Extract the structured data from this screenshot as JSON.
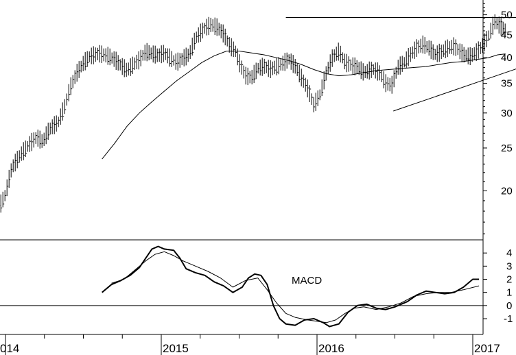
{
  "chart_data": [
    {
      "type": "ohlc",
      "panel": "price",
      "scale": "log",
      "ylim": [
        15.5,
        54
      ],
      "y_ticks": [
        20,
        25,
        30,
        35,
        40,
        45,
        50
      ],
      "x_labels": [
        {
          "x": 2014.0,
          "label": "014"
        },
        {
          "x": 2015.0,
          "label": "2015"
        },
        {
          "x": 2016.0,
          "label": "2016"
        },
        {
          "x": 2017.0,
          "label": "2017"
        }
      ],
      "price_path": [
        [
          2013.6,
          18.6
        ],
        [
          2013.66,
          18.2
        ],
        [
          2013.7,
          17.8
        ],
        [
          2013.74,
          19.2
        ],
        [
          2013.8,
          19.8
        ],
        [
          2013.86,
          19.7
        ],
        [
          2013.92,
          19.3
        ],
        [
          2013.96,
          18.4
        ],
        [
          2014.0,
          19.6
        ],
        [
          2014.04,
          22.5
        ],
        [
          2014.1,
          24.2
        ],
        [
          2014.16,
          25.6
        ],
        [
          2014.2,
          26.4
        ],
        [
          2014.24,
          25.8
        ],
        [
          2014.28,
          27.5
        ],
        [
          2014.34,
          28.6
        ],
        [
          2014.38,
          31.0
        ],
        [
          2014.42,
          34.5
        ],
        [
          2014.46,
          37.0
        ],
        [
          2014.5,
          38.8
        ],
        [
          2014.54,
          40.2
        ],
        [
          2014.6,
          40.8
        ],
        [
          2014.66,
          40.3
        ],
        [
          2014.7,
          39.6
        ],
        [
          2014.74,
          38.4
        ],
        [
          2014.78,
          37.4
        ],
        [
          2014.82,
          38.5
        ],
        [
          2014.86,
          39.5
        ],
        [
          2014.9,
          41.2
        ],
        [
          2014.94,
          40.8
        ],
        [
          2014.98,
          40.4
        ],
        [
          2015.02,
          40.9
        ],
        [
          2015.06,
          39.8
        ],
        [
          2015.1,
          39.0
        ],
        [
          2015.14,
          39.8
        ],
        [
          2015.18,
          40.6
        ],
        [
          2015.22,
          44.2
        ],
        [
          2015.28,
          46.6
        ],
        [
          2015.32,
          47.4
        ],
        [
          2015.36,
          46.8
        ],
        [
          2015.4,
          45.2
        ],
        [
          2015.44,
          42.5
        ],
        [
          2015.48,
          41.2
        ],
        [
          2015.5,
          39.0
        ],
        [
          2015.54,
          36.4
        ],
        [
          2015.58,
          36.0
        ],
        [
          2015.62,
          37.8
        ],
        [
          2015.66,
          38.2
        ],
        [
          2015.7,
          37.6
        ],
        [
          2015.76,
          38.4
        ],
        [
          2015.82,
          39.6
        ],
        [
          2015.86,
          38.2
        ],
        [
          2015.9,
          36.0
        ],
        [
          2015.94,
          34.0
        ],
        [
          2015.98,
          31.2
        ],
        [
          2016.02,
          33.0
        ],
        [
          2016.06,
          37.0
        ],
        [
          2016.1,
          40.0
        ],
        [
          2016.14,
          41.3
        ],
        [
          2016.18,
          39.0
        ],
        [
          2016.22,
          38.4
        ],
        [
          2016.26,
          38.0
        ],
        [
          2016.3,
          37.0
        ],
        [
          2016.36,
          37.6
        ],
        [
          2016.4,
          37.0
        ],
        [
          2016.44,
          35.0
        ],
        [
          2016.48,
          34.6
        ],
        [
          2016.52,
          38.0
        ],
        [
          2016.56,
          39.0
        ],
        [
          2016.6,
          40.6
        ],
        [
          2016.64,
          42.0
        ],
        [
          2016.68,
          42.8
        ],
        [
          2016.72,
          42.0
        ],
        [
          2016.76,
          40.6
        ],
        [
          2016.8,
          41.2
        ],
        [
          2016.84,
          42.0
        ],
        [
          2016.88,
          42.4
        ],
        [
          2016.94,
          40.6
        ],
        [
          2016.98,
          40.2
        ],
        [
          2017.02,
          41.0
        ],
        [
          2017.06,
          42.4
        ],
        [
          2017.1,
          44.6
        ],
        [
          2017.14,
          48.2
        ],
        [
          2017.18,
          47.0
        ],
        [
          2017.21,
          46.0
        ]
      ],
      "moving_average": [
        [
          2014.62,
          23.6
        ],
        [
          2014.7,
          25.6
        ],
        [
          2014.78,
          28.0
        ],
        [
          2014.86,
          30.0
        ],
        [
          2014.94,
          31.8
        ],
        [
          2015.02,
          33.6
        ],
        [
          2015.1,
          35.5
        ],
        [
          2015.18,
          37.2
        ],
        [
          2015.26,
          39.0
        ],
        [
          2015.34,
          40.4
        ],
        [
          2015.42,
          41.4
        ],
        [
          2015.5,
          41.4
        ],
        [
          2015.58,
          41.0
        ],
        [
          2015.66,
          40.6
        ],
        [
          2015.74,
          40.0
        ],
        [
          2015.82,
          39.4
        ],
        [
          2015.9,
          38.6
        ],
        [
          2015.98,
          37.6
        ],
        [
          2016.06,
          36.8
        ],
        [
          2016.14,
          36.4
        ],
        [
          2016.22,
          36.6
        ],
        [
          2016.3,
          37.0
        ],
        [
          2016.38,
          37.4
        ],
        [
          2016.46,
          37.6
        ],
        [
          2016.54,
          37.8
        ],
        [
          2016.62,
          38.0
        ],
        [
          2016.7,
          38.2
        ],
        [
          2016.78,
          38.6
        ],
        [
          2016.86,
          39.0
        ],
        [
          2016.94,
          39.2
        ],
        [
          2017.02,
          39.6
        ],
        [
          2017.1,
          40.0
        ],
        [
          2017.16,
          40.6
        ],
        [
          2017.21,
          40.8
        ]
      ],
      "resistance_line": {
        "x": [
          2015.8,
          2017.63
        ],
        "y": [
          49.3,
          49.3
        ]
      },
      "support_trendline": {
        "x": [
          2016.49,
          2017.63
        ],
        "y": [
          30.3,
          41.6
        ]
      }
    },
    {
      "type": "line",
      "panel": "indicator",
      "title": "MACD",
      "ylim": [
        -2.2,
        5.0
      ],
      "y_ticks": [
        -1,
        0,
        1,
        2,
        3,
        4
      ],
      "zero_line": 0,
      "series": [
        {
          "role": "macd",
          "points": [
            [
              2014.62,
              1.0
            ],
            [
              2014.68,
              1.6
            ],
            [
              2014.74,
              1.9
            ],
            [
              2014.8,
              2.3
            ],
            [
              2014.86,
              2.9
            ],
            [
              2014.9,
              3.6
            ],
            [
              2014.94,
              4.3
            ],
            [
              2014.98,
              4.5
            ],
            [
              2015.02,
              4.3
            ],
            [
              2015.08,
              4.2
            ],
            [
              2015.12,
              3.6
            ],
            [
              2015.16,
              2.8
            ],
            [
              2015.22,
              2.5
            ],
            [
              2015.28,
              2.3
            ],
            [
              2015.34,
              1.8
            ],
            [
              2015.4,
              1.5
            ],
            [
              2015.46,
              1.0
            ],
            [
              2015.52,
              1.4
            ],
            [
              2015.56,
              2.1
            ],
            [
              2015.6,
              2.4
            ],
            [
              2015.64,
              2.3
            ],
            [
              2015.68,
              1.6
            ],
            [
              2015.72,
              0.0
            ],
            [
              2015.76,
              -1.0
            ],
            [
              2015.8,
              -1.4
            ],
            [
              2015.86,
              -1.5
            ],
            [
              2015.92,
              -1.1
            ],
            [
              2015.98,
              -1.0
            ],
            [
              2016.04,
              -1.3
            ],
            [
              2016.08,
              -1.6
            ],
            [
              2016.14,
              -1.4
            ],
            [
              2016.2,
              -0.5
            ],
            [
              2016.26,
              0.0
            ],
            [
              2016.32,
              0.1
            ],
            [
              2016.38,
              -0.2
            ],
            [
              2016.44,
              -0.3
            ],
            [
              2016.5,
              -0.1
            ],
            [
              2016.58,
              0.3
            ],
            [
              2016.64,
              0.8
            ],
            [
              2016.7,
              1.1
            ],
            [
              2016.76,
              1.0
            ],
            [
              2016.82,
              0.9
            ],
            [
              2016.88,
              1.0
            ],
            [
              2016.94,
              1.4
            ],
            [
              2017.0,
              2.0
            ],
            [
              2017.04,
              2.0
            ]
          ]
        },
        {
          "role": "signal",
          "points": [
            [
              2014.68,
              1.7
            ],
            [
              2014.76,
              2.0
            ],
            [
              2014.84,
              2.8
            ],
            [
              2014.9,
              3.4
            ],
            [
              2014.96,
              3.9
            ],
            [
              2015.02,
              4.1
            ],
            [
              2015.08,
              3.8
            ],
            [
              2015.14,
              3.4
            ],
            [
              2015.22,
              3.0
            ],
            [
              2015.3,
              2.6
            ],
            [
              2015.38,
              2.1
            ],
            [
              2015.46,
              1.4
            ],
            [
              2015.54,
              1.9
            ],
            [
              2015.62,
              2.1
            ],
            [
              2015.68,
              1.2
            ],
            [
              2015.74,
              0.2
            ],
            [
              2015.8,
              -0.6
            ],
            [
              2015.86,
              -0.9
            ],
            [
              2015.94,
              -1.1
            ],
            [
              2016.0,
              -1.2
            ],
            [
              2016.06,
              -1.3
            ],
            [
              2016.12,
              -1.1
            ],
            [
              2016.18,
              -0.6
            ],
            [
              2016.24,
              -0.2
            ],
            [
              2016.3,
              -0.1
            ],
            [
              2016.38,
              -0.3
            ],
            [
              2016.46,
              -0.1
            ],
            [
              2016.54,
              0.2
            ],
            [
              2016.62,
              0.7
            ],
            [
              2016.7,
              0.9
            ],
            [
              2016.78,
              1.0
            ],
            [
              2016.86,
              1.0
            ],
            [
              2016.94,
              1.2
            ],
            [
              2017.04,
              1.5
            ]
          ]
        }
      ]
    }
  ]
}
